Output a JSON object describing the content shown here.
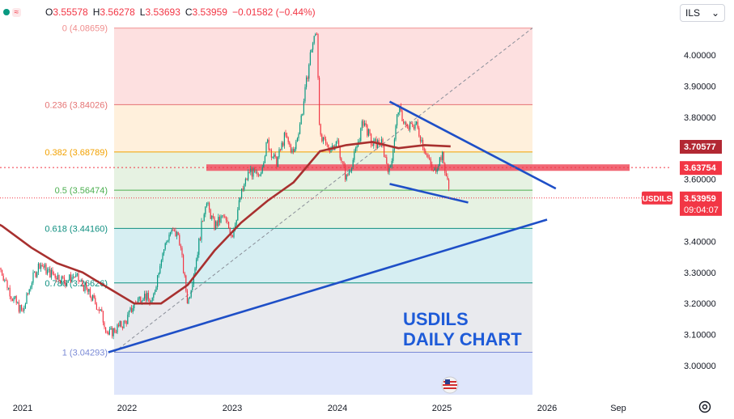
{
  "header": {
    "open_label": "O",
    "open": "3.55578",
    "high_label": "H",
    "high": "3.56278",
    "low_label": "L",
    "low": "3.53693",
    "close_label": "C",
    "close": "3.53959",
    "change": "−0.01582 (−0.44%)"
  },
  "currency_select": {
    "value": "ILS"
  },
  "annotation": {
    "line1": "USDILS",
    "line2": "DAILY CHART"
  },
  "colors": {
    "up": "#089981",
    "down": "#f23645",
    "ma": "#a8302f",
    "trendline": "#1e4fc7",
    "label_red": "#f23645",
    "ma_label": "#b22833"
  },
  "chart_data": {
    "type": "candlestick",
    "symbol": "USDILS",
    "ylim": [
      2.93,
      4.12
    ],
    "y_ticks": [
      "4.00000",
      "3.90000",
      "3.80000",
      "3.70000",
      "3.60000",
      "3.50000",
      "3.40000",
      "3.30000",
      "3.20000",
      "3.10000",
      "3.00000"
    ],
    "x_ticks": [
      "2021",
      "2022",
      "2023",
      "2024",
      "2025",
      "2026",
      "Sep"
    ],
    "fibonacci": [
      {
        "ratio": "0",
        "text": "0 (4.08659)",
        "price": 4.08659,
        "fill": "#fde0e0",
        "line": "#f08e8e"
      },
      {
        "ratio": "0.236",
        "text": "0.236 (3.84026)",
        "price": 3.84026,
        "fill": "#fff0dc",
        "line": "#e57373"
      },
      {
        "ratio": "0.382",
        "text": "0.382 (3.68789)",
        "price": 3.68789,
        "fill": "#e6f2e2",
        "line": "#f2a100"
      },
      {
        "ratio": "0.5",
        "text": "0.5 (3.56474)",
        "price": 3.56474,
        "fill": "#e6f2e2",
        "line": "#4caf50"
      },
      {
        "ratio": "0.618",
        "text": "0.618 (3.44160)",
        "price": 3.4416,
        "fill": "#d6eef2",
        "line": "#0f8f80"
      },
      {
        "ratio": "0.786",
        "text": "0.786 (3.26626)",
        "price": 3.26626,
        "fill": "#e9eaee",
        "line": "#0f8f80"
      },
      {
        "ratio": "1",
        "text": "1 (3.04293)",
        "price": 3.04293,
        "fill": "#dfe6fb",
        "line": "#7a8ad6"
      }
    ],
    "price_labels": [
      {
        "value": "3.70577",
        "price": 3.70577,
        "color": "#b22833"
      },
      {
        "value": "3.63754",
        "price": 3.63754,
        "color": "#f23645"
      },
      {
        "value": "3.53959",
        "sub": "09:04:07",
        "name": "USDILS",
        "price": 3.53959,
        "color": "#f23645"
      }
    ],
    "resistance_zone": {
      "top": 3.648,
      "bottom": 3.627
    },
    "trendlines": [
      {
        "from": [
          "2021-11",
          3.043
        ],
        "to": [
          "2026-01",
          3.47
        ]
      },
      {
        "from": [
          "2024-07",
          3.85
        ],
        "to": [
          "2026-02",
          3.57
        ]
      },
      {
        "from": [
          "2024-07",
          3.585
        ],
        "to": [
          "2025-04",
          3.525
        ]
      }
    ],
    "price_path": [
      [
        "2020-08",
        3.42
      ],
      [
        "2020-09",
        3.44
      ],
      [
        "2020-10",
        3.38
      ],
      [
        "2020-11",
        3.3
      ],
      [
        "2020-12",
        3.22
      ],
      [
        "2021-01",
        3.17
      ],
      [
        "2021-02",
        3.27
      ],
      [
        "2021-03",
        3.33
      ],
      [
        "2021-04",
        3.3
      ],
      [
        "2021-05",
        3.29
      ],
      [
        "2021-06",
        3.27
      ],
      [
        "2021-07",
        3.29
      ],
      [
        "2021-08",
        3.26
      ],
      [
        "2021-09",
        3.22
      ],
      [
        "2021-10",
        3.18
      ],
      [
        "2021-11",
        3.1
      ],
      [
        "2021-12",
        3.12
      ],
      [
        "2022-01",
        3.14
      ],
      [
        "2022-02",
        3.2
      ],
      [
        "2022-03",
        3.23
      ],
      [
        "2022-04",
        3.2
      ],
      [
        "2022-05",
        3.35
      ],
      [
        "2022-06",
        3.43
      ],
      [
        "2022-07",
        3.42
      ],
      [
        "2022-08",
        3.2
      ],
      [
        "2022-09",
        3.35
      ],
      [
        "2022-10",
        3.53
      ],
      [
        "2022-11",
        3.45
      ],
      [
        "2022-12",
        3.48
      ],
      [
        "2023-01",
        3.42
      ],
      [
        "2023-02",
        3.55
      ],
      [
        "2023-03",
        3.63
      ],
      [
        "2023-04",
        3.6
      ],
      [
        "2023-05",
        3.72
      ],
      [
        "2023-06",
        3.65
      ],
      [
        "2023-07",
        3.74
      ],
      [
        "2023-08",
        3.68
      ],
      [
        "2023-09",
        3.82
      ],
      [
        "2023-10",
        4.02
      ],
      [
        "2023-10-20",
        4.08
      ],
      [
        "2023-11",
        3.73
      ],
      [
        "2023-12",
        3.7
      ],
      [
        "2024-01",
        3.72
      ],
      [
        "2024-02",
        3.6
      ],
      [
        "2024-03",
        3.68
      ],
      [
        "2024-04",
        3.79
      ],
      [
        "2024-05",
        3.71
      ],
      [
        "2024-06",
        3.72
      ],
      [
        "2024-07",
        3.62
      ],
      [
        "2024-08",
        3.83
      ],
      [
        "2024-09",
        3.76
      ],
      [
        "2024-10",
        3.78
      ],
      [
        "2024-11",
        3.7
      ],
      [
        "2024-12",
        3.62
      ],
      [
        "2025-01",
        3.68
      ],
      [
        "2025-02",
        3.54
      ]
    ],
    "moving_average": [
      [
        "2020-08",
        3.5
      ],
      [
        "2020-11",
        3.45
      ],
      [
        "2021-02",
        3.38
      ],
      [
        "2021-05",
        3.33
      ],
      [
        "2021-08",
        3.3
      ],
      [
        "2021-11",
        3.25
      ],
      [
        "2022-02",
        3.2
      ],
      [
        "2022-05",
        3.2
      ],
      [
        "2022-08",
        3.26
      ],
      [
        "2022-11",
        3.37
      ],
      [
        "2023-02",
        3.46
      ],
      [
        "2023-05",
        3.53
      ],
      [
        "2023-08",
        3.59
      ],
      [
        "2023-11",
        3.69
      ],
      [
        "2024-02",
        3.71
      ],
      [
        "2024-05",
        3.72
      ],
      [
        "2024-08",
        3.7
      ],
      [
        "2024-11",
        3.71
      ],
      [
        "2025-02",
        3.706
      ]
    ]
  }
}
